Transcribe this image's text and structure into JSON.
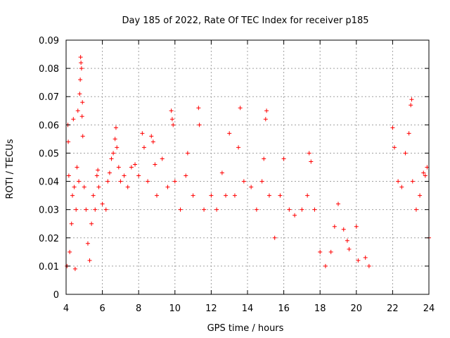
{
  "chart_data": {
    "type": "scatter",
    "title": "Day 185 of 2022, Rate Of TEC Index for receiver p185",
    "xlabel": "GPS time / hours",
    "ylabel": "ROTI / TECUs",
    "xlim": [
      4,
      24
    ],
    "ylim": [
      0,
      0.09
    ],
    "x_ticks": [
      4,
      6,
      8,
      10,
      12,
      14,
      16,
      18,
      20,
      22,
      24
    ],
    "x_tick_labels": [
      "4",
      "6",
      "8",
      "10",
      "12",
      "14",
      "16",
      "18",
      "20",
      "22",
      "24"
    ],
    "y_ticks": [
      0,
      0.01,
      0.02,
      0.03,
      0.04,
      0.05,
      0.06,
      0.07,
      0.08,
      0.09
    ],
    "y_tick_labels": [
      "0",
      "0.01",
      "0.02",
      "0.03",
      "0.04",
      "0.05",
      "0.06",
      "0.07",
      "0.08",
      "0.09"
    ],
    "grid": true,
    "marker": "plus",
    "series": [
      {
        "color": "#ff0000",
        "points": [
          [
            4.05,
            0.01
          ],
          [
            4.1,
            0.06
          ],
          [
            4.12,
            0.054
          ],
          [
            4.15,
            0.042
          ],
          [
            4.2,
            0.015
          ],
          [
            4.3,
            0.025
          ],
          [
            4.35,
            0.035
          ],
          [
            4.4,
            0.062
          ],
          [
            4.45,
            0.038
          ],
          [
            4.5,
            0.009
          ],
          [
            4.55,
            0.03
          ],
          [
            4.6,
            0.045
          ],
          [
            4.65,
            0.065
          ],
          [
            4.7,
            0.04
          ],
          [
            4.75,
            0.071
          ],
          [
            4.78,
            0.076
          ],
          [
            4.8,
            0.084
          ],
          [
            4.82,
            0.082
          ],
          [
            4.85,
            0.08
          ],
          [
            4.88,
            0.063
          ],
          [
            4.9,
            0.068
          ],
          [
            4.92,
            0.056
          ],
          [
            5.0,
            0.038
          ],
          [
            5.1,
            0.03
          ],
          [
            5.2,
            0.018
          ],
          [
            5.3,
            0.012
          ],
          [
            5.4,
            0.025
          ],
          [
            5.5,
            0.035
          ],
          [
            5.6,
            0.03
          ],
          [
            5.7,
            0.042
          ],
          [
            5.75,
            0.044
          ],
          [
            5.8,
            0.038
          ],
          [
            6.0,
            0.032
          ],
          [
            6.2,
            0.03
          ],
          [
            6.3,
            0.04
          ],
          [
            6.4,
            0.043
          ],
          [
            6.5,
            0.048
          ],
          [
            6.6,
            0.05
          ],
          [
            6.7,
            0.055
          ],
          [
            6.75,
            0.059
          ],
          [
            6.8,
            0.052
          ],
          [
            6.9,
            0.045
          ],
          [
            7.0,
            0.04
          ],
          [
            7.2,
            0.042
          ],
          [
            7.4,
            0.038
          ],
          [
            7.6,
            0.045
          ],
          [
            7.8,
            0.046
          ],
          [
            8.0,
            0.042
          ],
          [
            8.2,
            0.057
          ],
          [
            8.3,
            0.052
          ],
          [
            8.5,
            0.04
          ],
          [
            8.7,
            0.056
          ],
          [
            8.8,
            0.054
          ],
          [
            8.9,
            0.046
          ],
          [
            9.0,
            0.035
          ],
          [
            9.3,
            0.048
          ],
          [
            9.6,
            0.038
          ],
          [
            9.8,
            0.065
          ],
          [
            9.85,
            0.062
          ],
          [
            9.9,
            0.06
          ],
          [
            10.0,
            0.04
          ],
          [
            10.3,
            0.03
          ],
          [
            10.6,
            0.042
          ],
          [
            10.7,
            0.05
          ],
          [
            11.0,
            0.035
          ],
          [
            11.3,
            0.066
          ],
          [
            11.35,
            0.06
          ],
          [
            11.6,
            0.03
          ],
          [
            12.0,
            0.035
          ],
          [
            12.3,
            0.03
          ],
          [
            12.6,
            0.043
          ],
          [
            12.8,
            0.035
          ],
          [
            13.0,
            0.057
          ],
          [
            13.3,
            0.035
          ],
          [
            13.6,
            0.066
          ],
          [
            13.5,
            0.052
          ],
          [
            13.8,
            0.04
          ],
          [
            14.2,
            0.038
          ],
          [
            14.5,
            0.03
          ],
          [
            14.8,
            0.04
          ],
          [
            14.9,
            0.048
          ],
          [
            15.0,
            0.062
          ],
          [
            15.05,
            0.065
          ],
          [
            15.2,
            0.035
          ],
          [
            15.5,
            0.02
          ],
          [
            15.8,
            0.035
          ],
          [
            16.0,
            0.048
          ],
          [
            16.3,
            0.03
          ],
          [
            16.6,
            0.028
          ],
          [
            17.0,
            0.03
          ],
          [
            17.3,
            0.035
          ],
          [
            17.4,
            0.05
          ],
          [
            17.5,
            0.047
          ],
          [
            17.7,
            0.03
          ],
          [
            18.0,
            0.015
          ],
          [
            18.3,
            0.01
          ],
          [
            18.6,
            0.015
          ],
          [
            18.8,
            0.024
          ],
          [
            19.0,
            0.032
          ],
          [
            19.3,
            0.023
          ],
          [
            19.5,
            0.019
          ],
          [
            19.6,
            0.016
          ],
          [
            20.0,
            0.024
          ],
          [
            20.1,
            0.012
          ],
          [
            20.5,
            0.013
          ],
          [
            20.7,
            0.01
          ],
          [
            22.0,
            0.059
          ],
          [
            22.1,
            0.052
          ],
          [
            22.3,
            0.04
          ],
          [
            22.5,
            0.038
          ],
          [
            22.7,
            0.05
          ],
          [
            22.9,
            0.057
          ],
          [
            23.0,
            0.067
          ],
          [
            23.05,
            0.069
          ],
          [
            23.1,
            0.04
          ],
          [
            23.3,
            0.03
          ],
          [
            23.5,
            0.035
          ],
          [
            23.7,
            0.043
          ],
          [
            23.8,
            0.042
          ],
          [
            23.9,
            0.045
          ],
          [
            24.0,
            0.02
          ]
        ]
      }
    ]
  }
}
